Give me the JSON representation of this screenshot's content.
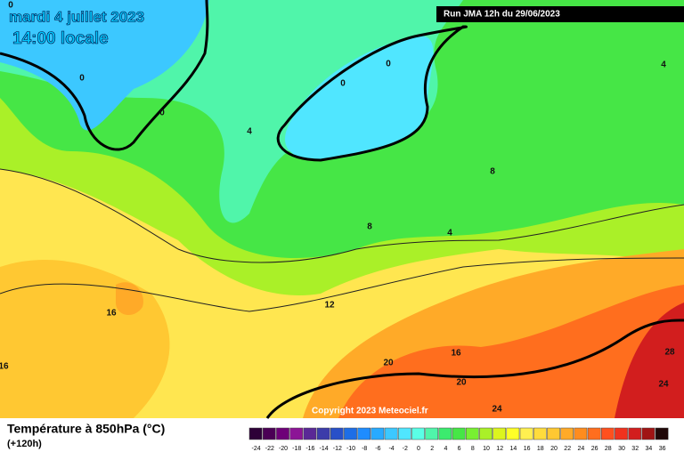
{
  "header": {
    "date": "mardi 4 juillet 2023",
    "time": "14:00 locale",
    "run": "Run JMA 12h du 29/06/2023"
  },
  "map": {
    "contour_labels": [
      0,
      0,
      0,
      0,
      0,
      4,
      4,
      4,
      8,
      8,
      12,
      16,
      16,
      16,
      20,
      20,
      24,
      24,
      28
    ],
    "copyright": "Copyright 2023 Meteociel.fr"
  },
  "footer": {
    "title": "Température à 850hPa (°C)",
    "lead": "(+120h)"
  },
  "legend": {
    "labels": [
      -24,
      -22,
      -20,
      -18,
      -16,
      -14,
      -12,
      -10,
      -8,
      -6,
      -4,
      -2,
      0,
      2,
      4,
      6,
      8,
      10,
      12,
      14,
      16,
      18,
      20,
      22,
      24,
      26,
      28,
      30,
      32,
      34,
      36
    ],
    "colors": [
      "#2d0037",
      "#4b0055",
      "#6e0078",
      "#8c1496",
      "#5a2896",
      "#3c3caa",
      "#2850c8",
      "#1e6ee6",
      "#1e8cff",
      "#28aaff",
      "#3cc8ff",
      "#50e6ff",
      "#5affe6",
      "#50f5aa",
      "#3ceb6e",
      "#46e646",
      "#78f032",
      "#aaf028",
      "#dcf51e",
      "#ffff28",
      "#fff050",
      "#ffdc3c",
      "#ffc832",
      "#ffaa28",
      "#ff8c1e",
      "#ff6e1e",
      "#ff501e",
      "#f0321e",
      "#d21e1e",
      "#a01414",
      "#200808"
    ]
  }
}
